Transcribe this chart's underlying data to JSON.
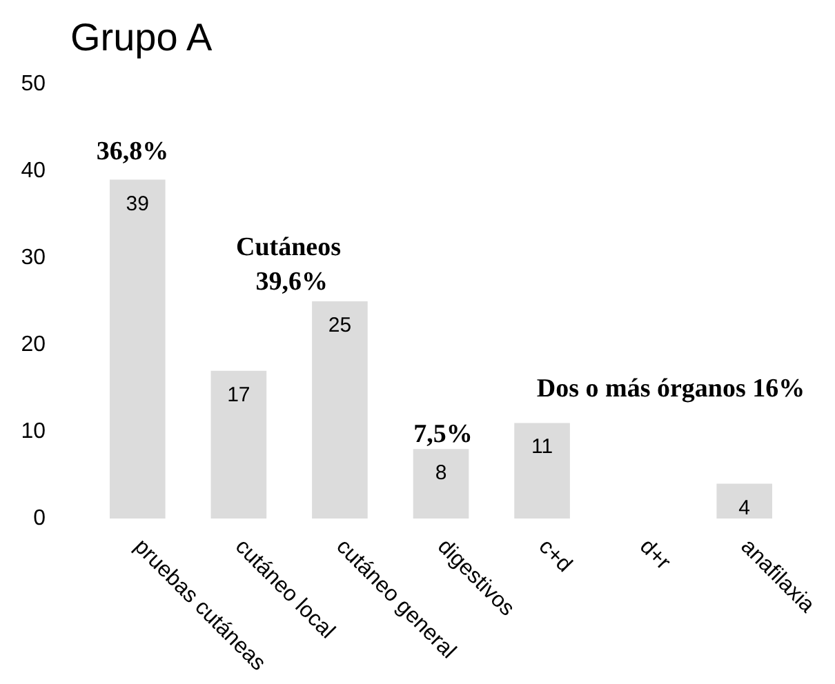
{
  "chart_data": {
    "type": "bar",
    "title": "Grupo A",
    "categories": [
      "pruebas cutáneas",
      "cutáneo local",
      "cutáneo general",
      "digestivos",
      "c+d",
      "d+r",
      "anafilaxia"
    ],
    "values": [
      39,
      17,
      25,
      8,
      11,
      null,
      4
    ],
    "color": "#dcdcdc",
    "ylim": [
      0,
      50
    ],
    "yticks": [
      0,
      10,
      20,
      30,
      40,
      50
    ],
    "data_labels": true,
    "annotations": [
      "36,8%",
      "Cutáneos 39,6%",
      "7,5%",
      "Dos o más órganos 16%"
    ]
  }
}
